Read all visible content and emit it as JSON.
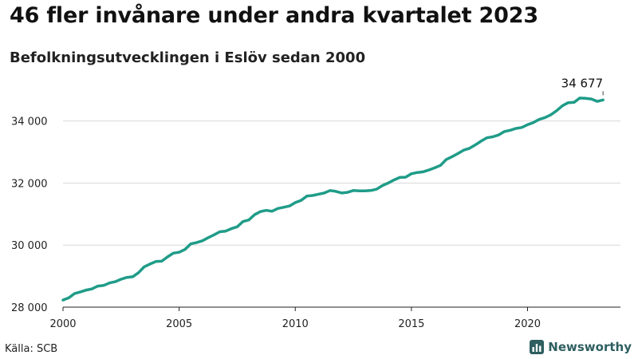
{
  "header": {
    "title": "46 fler invånare under andra kvartalet 2023",
    "subtitle": "Befolkningsutvecklingen i Eslöv sedan 2000"
  },
  "footer": {
    "source": "Källa: SCB",
    "brand": "Newsworthy",
    "brand_icon": "bar-chart-logo-icon",
    "brand_color": "#2f5f60"
  },
  "chart_data": {
    "type": "line",
    "title": "46 fler invånare under andra kvartalet 2023",
    "subtitle": "Befolkningsutvecklingen i Eslöv sedan 2000",
    "xlabel": "",
    "ylabel": "",
    "xlim": [
      2000,
      2024
    ],
    "ylim": [
      28000,
      35200
    ],
    "grid": true,
    "line_color": "#1f9c88",
    "x_ticks": [
      2000,
      2005,
      2010,
      2015,
      2020
    ],
    "x_tick_labels": [
      "2000",
      "2005",
      "2010",
      "2015",
      "2020"
    ],
    "y_ticks": [
      28000,
      30000,
      32000,
      34000
    ],
    "y_tick_labels": [
      "28 000",
      "30 000",
      "32 000",
      "34 000"
    ],
    "end_label": "34 677",
    "series": [
      {
        "x": [
          2000.0,
          2000.25,
          2000.5,
          2000.75,
          2001.0,
          2001.25,
          2001.5,
          2001.75,
          2002.0,
          2002.25,
          2002.5,
          2002.75,
          2003.0,
          2003.25,
          2003.5,
          2003.75,
          2004.0,
          2004.25,
          2004.5,
          2004.75,
          2005.0,
          2005.25,
          2005.5,
          2005.75,
          2006.0,
          2006.25,
          2006.5,
          2006.75,
          2007.0,
          2007.25,
          2007.5,
          2007.75,
          2008.0,
          2008.25,
          2008.5,
          2008.75,
          2009.0,
          2009.25,
          2009.5,
          2009.75,
          2010.0,
          2010.25,
          2010.5,
          2010.75,
          2011.0,
          2011.25,
          2011.5,
          2011.75,
          2012.0,
          2012.25,
          2012.5,
          2012.75,
          2013.0,
          2013.25,
          2013.5,
          2013.75,
          2014.0,
          2014.25,
          2014.5,
          2014.75,
          2015.0,
          2015.25,
          2015.5,
          2015.75,
          2016.0,
          2016.25,
          2016.5,
          2016.75,
          2017.0,
          2017.25,
          2017.5,
          2017.75,
          2018.0,
          2018.25,
          2018.5,
          2018.75,
          2019.0,
          2019.25,
          2019.5,
          2019.75,
          2020.0,
          2020.25,
          2020.5,
          2020.75,
          2021.0,
          2021.25,
          2021.5,
          2021.75,
          2022.0,
          2022.25,
          2022.5,
          2022.75,
          2023.0,
          2023.25
        ],
        "values": [
          28230,
          28300,
          28440,
          28490,
          28550,
          28590,
          28680,
          28700,
          28780,
          28820,
          28900,
          28960,
          28980,
          29110,
          29300,
          29390,
          29470,
          29480,
          29620,
          29740,
          29770,
          29860,
          30040,
          30080,
          30140,
          30240,
          30330,
          30430,
          30450,
          30530,
          30590,
          30760,
          30810,
          30980,
          31080,
          31120,
          31090,
          31180,
          31220,
          31260,
          31370,
          31440,
          31580,
          31600,
          31640,
          31680,
          31760,
          31730,
          31680,
          31700,
          31760,
          31750,
          31750,
          31760,
          31800,
          31920,
          32000,
          32100,
          32180,
          32190,
          32300,
          32340,
          32360,
          32420,
          32490,
          32570,
          32760,
          32850,
          32950,
          33060,
          33120,
          33230,
          33350,
          33460,
          33490,
          33550,
          33660,
          33700,
          33760,
          33790,
          33880,
          33950,
          34050,
          34110,
          34200,
          34330,
          34490,
          34590,
          34600,
          34740,
          34730,
          34710,
          34631,
          34677
        ]
      }
    ]
  }
}
